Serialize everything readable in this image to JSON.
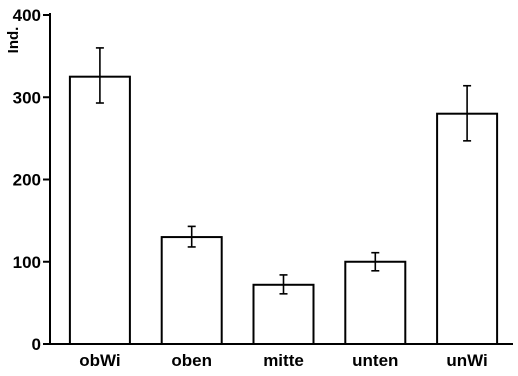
{
  "chart_data": {
    "type": "bar",
    "title": "",
    "xlabel": "",
    "ylabel": "Ind.",
    "ylim": [
      0,
      400
    ],
    "yticks": [
      0,
      100,
      200,
      300,
      400
    ],
    "categories": [
      "obWi",
      "oben",
      "mitte",
      "unten",
      "unWi"
    ],
    "values": [
      325,
      130,
      72,
      100,
      280
    ],
    "errors": [
      [
        293,
        360
      ],
      [
        118,
        143
      ],
      [
        61,
        84
      ],
      [
        89,
        111
      ],
      [
        247,
        314
      ]
    ],
    "grid": false,
    "bar_fill": "#ffffff",
    "bar_stroke": "#000000"
  }
}
